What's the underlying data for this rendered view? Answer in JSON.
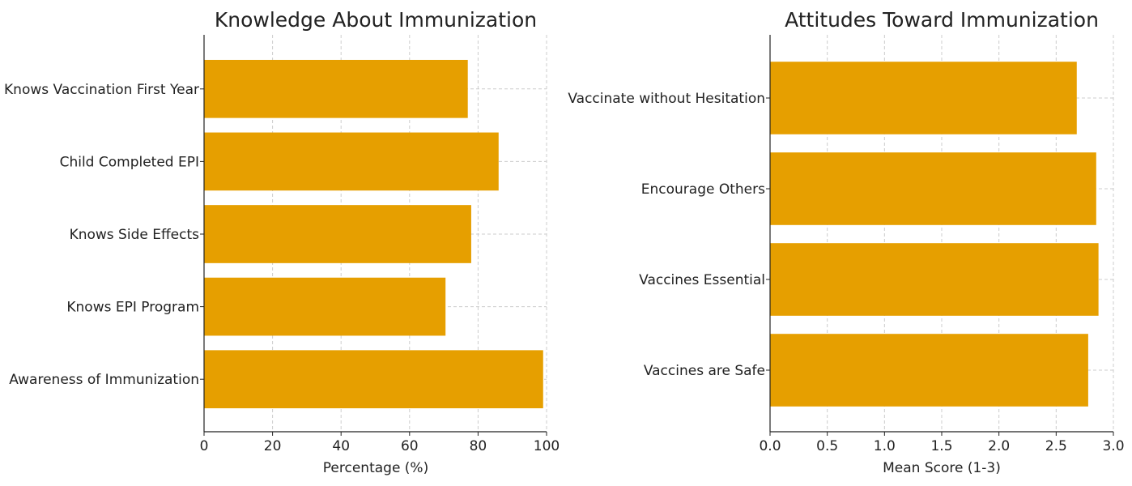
{
  "chart_data": [
    {
      "type": "bar",
      "orientation": "horizontal",
      "title": "Knowledge About Immunization",
      "xlabel": "Percentage (%)",
      "ylabel": "",
      "categories": [
        "Awareness of Immunization",
        "Knows EPI Program",
        "Knows Side Effects",
        "Child Completed EPI",
        "Knows Vaccination First Year"
      ],
      "values": [
        99,
        70.5,
        78,
        86,
        77
      ],
      "xlim": [
        0,
        100
      ],
      "xticks": [
        0,
        20,
        40,
        60,
        80,
        100
      ],
      "xtick_labels": [
        "0",
        "20",
        "40",
        "60",
        "80",
        "100"
      ],
      "grid": true,
      "bar_color": "#e69f00"
    },
    {
      "type": "bar",
      "orientation": "horizontal",
      "title": "Attitudes Toward Immunization",
      "xlabel": "Mean Score (1-3)",
      "ylabel": "",
      "categories": [
        "Vaccines are Safe",
        "Vaccines Essential",
        "Encourage Others",
        "Vaccinate without Hesitation"
      ],
      "values": [
        2.78,
        2.87,
        2.85,
        2.68
      ],
      "xlim": [
        0,
        3.0
      ],
      "xticks": [
        0,
        0.5,
        1.0,
        1.5,
        2.0,
        2.5,
        3.0
      ],
      "xtick_labels": [
        "0.0",
        "0.5",
        "1.0",
        "1.5",
        "2.0",
        "2.5",
        "3.0"
      ],
      "grid": true,
      "bar_color": "#e69f00"
    }
  ]
}
